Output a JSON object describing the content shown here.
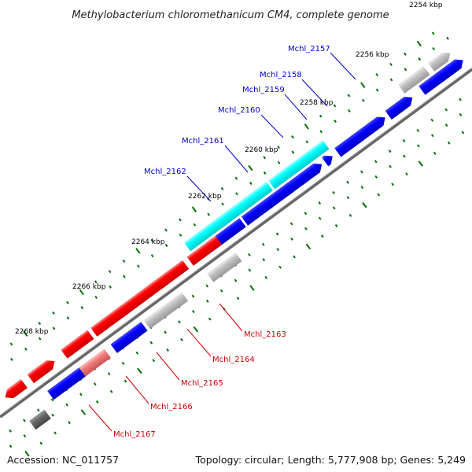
{
  "title": "Methylobacterium chloromethanicum CM4, complete genome",
  "footer": {
    "accession": "Accession: NC_011757",
    "topology": "Topology: circular; Length: 5,777,908 bp; Genes: 5,249"
  },
  "colors": {
    "forward": "#ff0000",
    "reverse": "#0000ff",
    "highlight": "#00ffff",
    "rna_or_other": "#b8b8b8",
    "backbone": "#777777",
    "ticks": "#007000",
    "label_top": "#0000cc",
    "label_bottom": "#cc0000"
  },
  "kbp_labels": [
    "2254 kbp",
    "2256 kbp",
    "2258 kbp",
    "2260 kbp",
    "2262 kbp",
    "2264 kbp",
    "2266 kbp",
    "2268 kbp"
  ],
  "gene_labels": {
    "top": [
      "Mchl_2157",
      "Mchl_2158",
      "Mchl_2159",
      "Mchl_2160",
      "Mchl_2161",
      "Mchl_2162"
    ],
    "bottom": [
      "Mchl_2163",
      "Mchl_2164",
      "Mchl_2165",
      "Mchl_2166",
      "Mchl_2167"
    ]
  }
}
